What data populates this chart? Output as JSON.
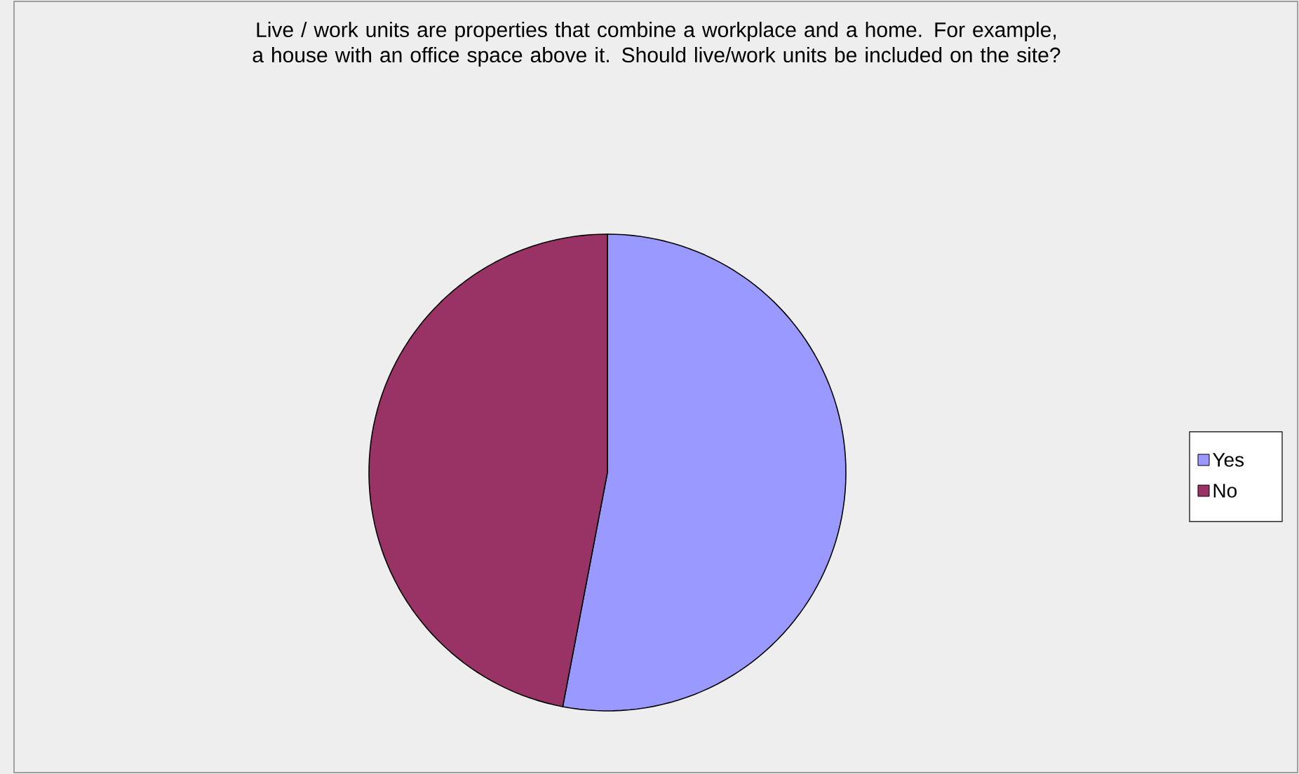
{
  "chart_data": {
    "type": "pie",
    "title": "Live / work units are properties that combine a workplace and a home. For example, a house with an office space above it. Should live/work units be included on the site?",
    "categories": [
      "Yes",
      "No"
    ],
    "values": [
      53,
      47
    ],
    "colors": [
      "#9999ff",
      "#993366"
    ],
    "legend": "right"
  }
}
